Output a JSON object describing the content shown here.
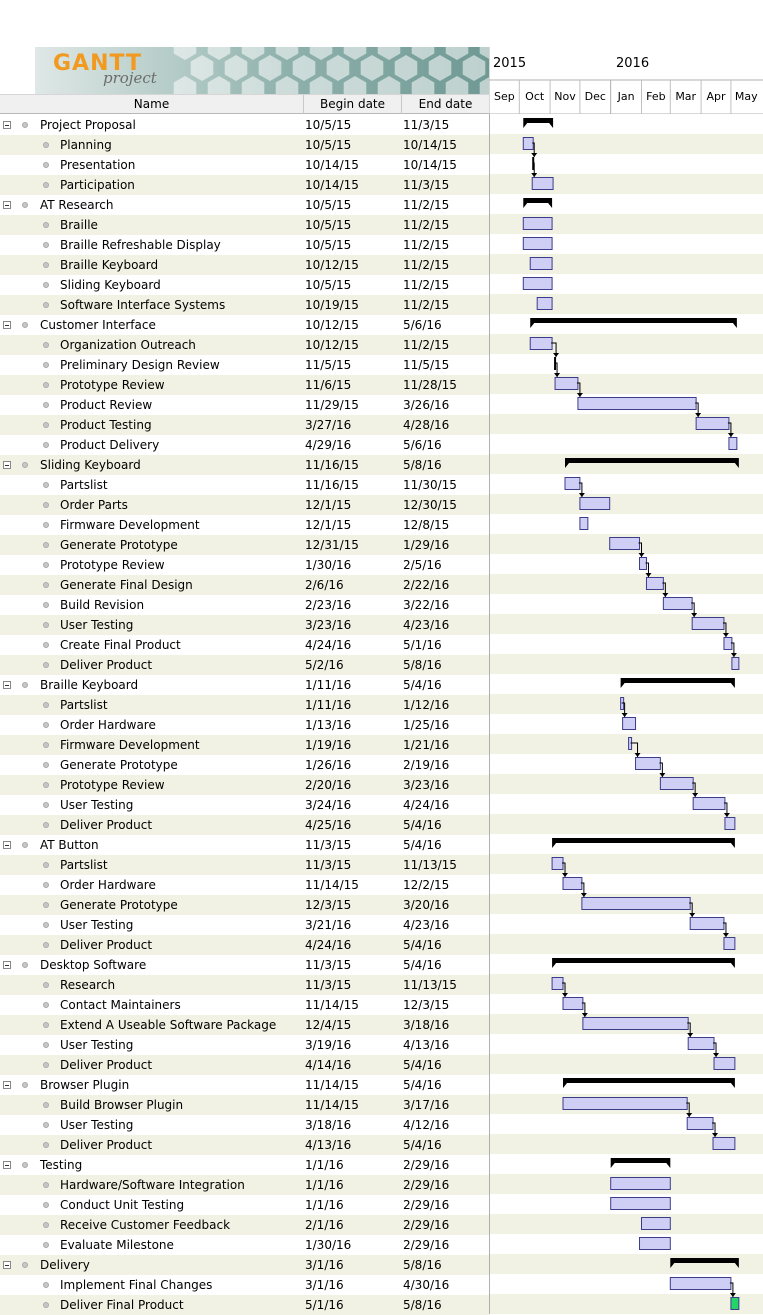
{
  "logo": {
    "brand": "GANTT",
    "sub": "project"
  },
  "columns": {
    "name": "Name",
    "begin": "Begin date",
    "end": "End date"
  },
  "timeline": {
    "years": [
      "2015",
      "2016"
    ],
    "months": [
      "Sep",
      "Oct",
      "Nov",
      "Dec",
      "Jan",
      "Feb",
      "Mar",
      "Apr",
      "May"
    ]
  },
  "tasks": [
    {
      "name": "Project Proposal",
      "begin": "10/5/15",
      "end": "11/3/15",
      "group": true
    },
    {
      "name": "Planning",
      "begin": "10/5/15",
      "end": "10/14/15"
    },
    {
      "name": "Presentation",
      "begin": "10/14/15",
      "end": "10/14/15"
    },
    {
      "name": "Participation",
      "begin": "10/14/15",
      "end": "11/3/15"
    },
    {
      "name": "AT Research",
      "begin": "10/5/15",
      "end": "11/2/15",
      "group": true
    },
    {
      "name": "Braille",
      "begin": "10/5/15",
      "end": "11/2/15"
    },
    {
      "name": "Braille Refreshable Display",
      "begin": "10/5/15",
      "end": "11/2/15"
    },
    {
      "name": "Braille Keyboard",
      "begin": "10/12/15",
      "end": "11/2/15"
    },
    {
      "name": "Sliding Keyboard",
      "begin": "10/5/15",
      "end": "11/2/15"
    },
    {
      "name": "Software Interface Systems",
      "begin": "10/19/15",
      "end": "11/2/15"
    },
    {
      "name": "Customer Interface",
      "begin": "10/12/15",
      "end": "5/6/16",
      "group": true
    },
    {
      "name": "Organization Outreach",
      "begin": "10/12/15",
      "end": "11/2/15"
    },
    {
      "name": "Preliminary Design Review",
      "begin": "11/5/15",
      "end": "11/5/15"
    },
    {
      "name": "Prototype Review",
      "begin": "11/6/15",
      "end": "11/28/15"
    },
    {
      "name": "Product Review",
      "begin": "11/29/15",
      "end": "3/26/16"
    },
    {
      "name": "Product Testing",
      "begin": "3/27/16",
      "end": "4/28/16"
    },
    {
      "name": "Product Delivery",
      "begin": "4/29/16",
      "end": "5/6/16"
    },
    {
      "name": "Sliding Keyboard",
      "begin": "11/16/15",
      "end": "5/8/16",
      "group": true
    },
    {
      "name": "Partslist",
      "begin": "11/16/15",
      "end": "11/30/15"
    },
    {
      "name": "Order Parts",
      "begin": "12/1/15",
      "end": "12/30/15"
    },
    {
      "name": "Firmware Development",
      "begin": "12/1/15",
      "end": "12/8/15"
    },
    {
      "name": "Generate Prototype",
      "begin": "12/31/15",
      "end": "1/29/16"
    },
    {
      "name": "Prototype Review",
      "begin": "1/30/16",
      "end": "2/5/16"
    },
    {
      "name": "Generate Final Design",
      "begin": "2/6/16",
      "end": "2/22/16"
    },
    {
      "name": "Build Revision",
      "begin": "2/23/16",
      "end": "3/22/16"
    },
    {
      "name": "User Testing",
      "begin": "3/23/16",
      "end": "4/23/16"
    },
    {
      "name": "Create Final Product",
      "begin": "4/24/16",
      "end": "5/1/16"
    },
    {
      "name": "Deliver Product",
      "begin": "5/2/16",
      "end": "5/8/16"
    },
    {
      "name": "Braille Keyboard",
      "begin": "1/11/16",
      "end": "5/4/16",
      "group": true
    },
    {
      "name": "Partslist",
      "begin": "1/11/16",
      "end": "1/12/16"
    },
    {
      "name": "Order Hardware",
      "begin": "1/13/16",
      "end": "1/25/16"
    },
    {
      "name": "Firmware Development",
      "begin": "1/19/16",
      "end": "1/21/16"
    },
    {
      "name": "Generate Prototype",
      "begin": "1/26/16",
      "end": "2/19/16"
    },
    {
      "name": "Prototype Review",
      "begin": "2/20/16",
      "end": "3/23/16"
    },
    {
      "name": "User Testing",
      "begin": "3/24/16",
      "end": "4/24/16"
    },
    {
      "name": "Deliver Product",
      "begin": "4/25/16",
      "end": "5/4/16"
    },
    {
      "name": "AT Button",
      "begin": "11/3/15",
      "end": "5/4/16",
      "group": true
    },
    {
      "name": "Partslist",
      "begin": "11/3/15",
      "end": "11/13/15"
    },
    {
      "name": "Order Hardware",
      "begin": "11/14/15",
      "end": "12/2/15"
    },
    {
      "name": "Generate Prototype",
      "begin": "12/3/15",
      "end": "3/20/16"
    },
    {
      "name": "User Testing",
      "begin": "3/21/16",
      "end": "4/23/16"
    },
    {
      "name": "Deliver Product",
      "begin": "4/24/16",
      "end": "5/4/16"
    },
    {
      "name": "Desktop Software",
      "begin": "11/3/15",
      "end": "5/4/16",
      "group": true
    },
    {
      "name": "Research",
      "begin": "11/3/15",
      "end": "11/13/15"
    },
    {
      "name": "Contact Maintainers",
      "begin": "11/14/15",
      "end": "12/3/15"
    },
    {
      "name": "Extend A Useable Software Package",
      "begin": "12/4/15",
      "end": "3/18/16"
    },
    {
      "name": "User Testing",
      "begin": "3/19/16",
      "end": "4/13/16"
    },
    {
      "name": "Deliver Product",
      "begin": "4/14/16",
      "end": "5/4/16"
    },
    {
      "name": "Browser Plugin",
      "begin": "11/14/15",
      "end": "5/4/16",
      "group": true
    },
    {
      "name": "Build Browser Plugin",
      "begin": "11/14/15",
      "end": "3/17/16"
    },
    {
      "name": "User Testing",
      "begin": "3/18/16",
      "end": "4/12/16"
    },
    {
      "name": "Deliver Product",
      "begin": "4/13/16",
      "end": "5/4/16"
    },
    {
      "name": "Testing",
      "begin": "1/1/16",
      "end": "2/29/16",
      "group": true
    },
    {
      "name": "Hardware/Software Integration",
      "begin": "1/1/16",
      "end": "2/29/16"
    },
    {
      "name": "Conduct Unit Testing",
      "begin": "1/1/16",
      "end": "2/29/16"
    },
    {
      "name": "Receive Customer Feedback",
      "begin": "2/1/16",
      "end": "2/29/16"
    },
    {
      "name": "Evaluate Milestone",
      "begin": "1/30/16",
      "end": "2/29/16"
    },
    {
      "name": "Delivery",
      "begin": "3/1/16",
      "end": "5/8/16",
      "group": true
    },
    {
      "name": "Implement Final Changes",
      "begin": "3/1/16",
      "end": "4/30/16"
    },
    {
      "name": "Deliver Final Product",
      "begin": "5/1/16",
      "end": "5/8/16",
      "milestone": true
    }
  ],
  "colors": {
    "bar": "#cfcff5",
    "bar_border": "#3c3c8a",
    "summary": "#000000",
    "milestone": "#22d46a",
    "alt_row": "#f1f1e4"
  }
}
